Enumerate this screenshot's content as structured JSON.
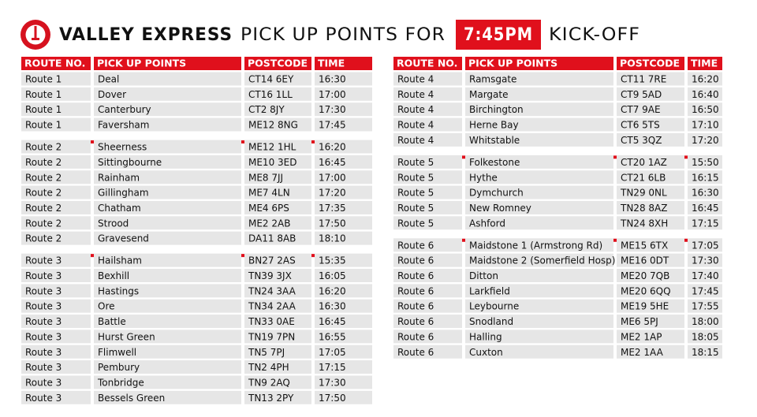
{
  "header": {
    "title_bold": "VALLEY EXPRESS",
    "title_regular": "PICK UP POINTS FOR",
    "time": "7:45PM",
    "suffix": "KICK-OFF"
  },
  "tables": [
    {
      "header": [
        "ROUTE NO.",
        "PICK UP POINTS",
        "POSTCODE",
        "TIME"
      ],
      "groups": [
        {
          "rows": [
            [
              "Route 1",
              "Deal",
              "CT14 6EY",
              "16:30"
            ],
            [
              "Route 1",
              "Dover",
              "CT16 1LL",
              "17:00"
            ],
            [
              "Route 1",
              "Canterbury",
              "CT2 8JY",
              "17:30"
            ],
            [
              "Route 1",
              "Faversham",
              "ME12 8NG",
              "17:45"
            ]
          ]
        },
        {
          "rows": [
            [
              "Route 2",
              "Sheerness",
              "ME12 1HL",
              "16:20"
            ],
            [
              "Route 2",
              "Sittingbourne",
              "ME10 3ED",
              "16:45"
            ],
            [
              "Route 2",
              "Rainham",
              "ME8 7JJ",
              "17:00"
            ],
            [
              "Route 2",
              "Gillingham",
              "ME7 4LN",
              "17:20"
            ],
            [
              "Route 2",
              "Chatham",
              "ME4 6PS",
              "17:35"
            ],
            [
              "Route 2",
              "Strood",
              "ME2 2AB",
              "17:50"
            ],
            [
              "Route 2",
              "Gravesend",
              "DA11 8AB",
              "18:10"
            ]
          ]
        },
        {
          "rows": [
            [
              "Route 3",
              "Hailsham",
              "BN27 2AS",
              "15:35"
            ],
            [
              "Route 3",
              "Bexhill",
              "TN39 3JX",
              "16:05"
            ],
            [
              "Route 3",
              "Hastings",
              "TN24 3AA",
              "16:20"
            ],
            [
              "Route 3",
              "Ore",
              "TN34 2AA",
              "16:30"
            ],
            [
              "Route 3",
              "Battle",
              "TN33 0AE",
              "16:45"
            ],
            [
              "Route 3",
              "Hurst Green",
              "TN19 7PN",
              "16:55"
            ],
            [
              "Route 3",
              "Flimwell",
              "TN5 7PJ",
              "17:05"
            ],
            [
              "Route 3",
              "Pembury",
              "TN2 4PH",
              "17:15"
            ],
            [
              "Route 3",
              "Tonbridge",
              "TN9 2AQ",
              "17:30"
            ],
            [
              "Route 3",
              "Bessels Green",
              "TN13 2PY",
              "17:50"
            ]
          ]
        }
      ]
    },
    {
      "header": [
        "ROUTE NO.",
        "PICK UP POINTS",
        "POSTCODE",
        "TIME"
      ],
      "groups": [
        {
          "rows": [
            [
              "Route 4",
              "Ramsgate",
              "CT11 7RE",
              "16:20"
            ],
            [
              "Route 4",
              "Margate",
              "CT9 5AD",
              "16:40"
            ],
            [
              "Route 4",
              "Birchington",
              "CT7 9AE",
              "16:50"
            ],
            [
              "Route 4",
              "Herne Bay",
              "CT6 5TS",
              "17:10"
            ],
            [
              "Route 4",
              "Whitstable",
              "CT5 3QZ",
              "17:20"
            ]
          ]
        },
        {
          "rows": [
            [
              "Route 5",
              "Folkestone",
              "CT20 1AZ",
              "15:50"
            ],
            [
              "Route 5",
              "Hythe",
              "CT21 6LB",
              "16:15"
            ],
            [
              "Route 5",
              "Dymchurch",
              "TN29 0NL",
              "16:30"
            ],
            [
              "Route 5",
              "New Romney",
              "TN28 8AZ",
              "16:45"
            ],
            [
              "Route 5",
              "Ashford",
              "TN24 8XH",
              "17:15"
            ]
          ]
        },
        {
          "rows": [
            [
              "Route 6",
              "Maidstone 1 (Armstrong Rd)",
              "ME15 6TX",
              "17:05"
            ],
            [
              "Route 6",
              "Maidstone 2 (Somerfield Hosp)",
              "ME16 0DT",
              "17:30"
            ],
            [
              "Route 6",
              "Ditton",
              "ME20 7QB",
              "17:40"
            ],
            [
              "Route 6",
              "Larkfield",
              "ME20 6QQ",
              "17:45"
            ],
            [
              "Route 6",
              "Leybourne",
              "ME19 5HE",
              "17:55"
            ],
            [
              "Route 6",
              "Snodland",
              "ME6 5PJ",
              "18:00"
            ],
            [
              "Route 6",
              "Halling",
              "ME2 1AP",
              "18:05"
            ],
            [
              "Route 6",
              "Cuxton",
              "ME2 1AA",
              "18:15"
            ]
          ]
        }
      ]
    }
  ]
}
